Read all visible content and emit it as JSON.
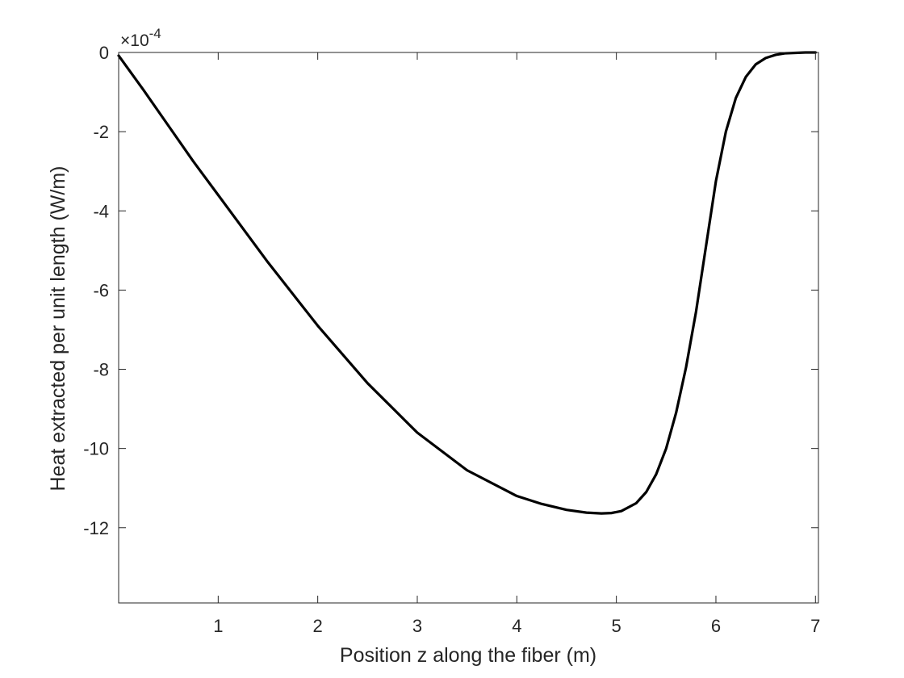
{
  "chart_data": {
    "type": "line",
    "title": "",
    "xlabel": "Position z along the fiber (m)",
    "ylabel": "Heat extracted per unit length (W/m)",
    "y_exponent_label": "×10",
    "y_exponent_power": "-4",
    "xlim": [
      0.0,
      7.03
    ],
    "ylim": [
      -13.9,
      0
    ],
    "xticks": [
      1,
      2,
      3,
      4,
      5,
      6,
      7
    ],
    "yticks": [
      0,
      -2,
      -4,
      -6,
      -8,
      -10,
      -12
    ],
    "xtick_labels": [
      "1",
      "2",
      "3",
      "4",
      "5",
      "6",
      "7"
    ],
    "ytick_labels": [
      "0",
      "-2",
      "-4",
      "-6",
      "-8",
      "-10",
      "-12"
    ],
    "grid": false,
    "legend": "none",
    "line_color": "#000000",
    "series": [
      {
        "x": [
          0.0,
          0.25,
          0.5,
          0.75,
          1.0,
          1.5,
          2.0,
          2.5,
          3.0,
          3.5,
          4.0,
          4.25,
          4.5,
          4.7,
          4.85,
          4.95,
          5.05,
          5.2,
          5.3,
          5.4,
          5.5,
          5.6,
          5.7,
          5.8,
          5.9,
          6.0,
          6.1,
          6.2,
          6.3,
          6.4,
          6.5,
          6.6,
          6.7,
          6.8,
          6.9,
          7.0
        ],
        "y": [
          -0.08,
          -0.95,
          -1.85,
          -2.75,
          -3.6,
          -5.3,
          -6.9,
          -8.35,
          -9.6,
          -10.55,
          -11.2,
          -11.4,
          -11.55,
          -11.62,
          -11.64,
          -11.63,
          -11.58,
          -11.38,
          -11.1,
          -10.65,
          -10.0,
          -9.1,
          -7.95,
          -6.55,
          -4.9,
          -3.25,
          -2.0,
          -1.15,
          -0.62,
          -0.3,
          -0.14,
          -0.06,
          -0.02,
          -0.01,
          0.0,
          0.0
        ]
      }
    ]
  }
}
